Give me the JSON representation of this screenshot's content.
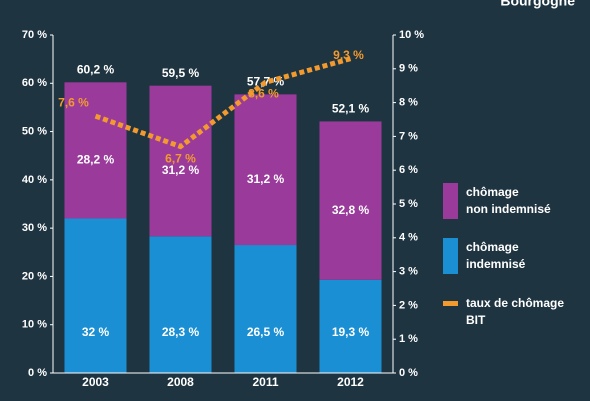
{
  "chart_data": {
    "type": "bar",
    "title": "Bourgogne",
    "categories": [
      "2003",
      "2008",
      "2011",
      "2012"
    ],
    "series": [
      {
        "name": "chômage\nindemnisé",
        "color": "#1a8fd3",
        "values": [
          32,
          28.3,
          26.5,
          19.3
        ],
        "value_labels": [
          "32 %",
          "28,3 %",
          "26,5 %",
          "19,3 %"
        ]
      },
      {
        "name": "chômage\nnon indemnisé",
        "color": "#9a3b9b",
        "values": [
          28.2,
          31.2,
          31.2,
          32.8
        ],
        "value_labels": [
          "28,2 %",
          "31,2 %",
          "31,2 %",
          "32,8 %"
        ]
      },
      {
        "name": "taux de chômage\nBIT",
        "color": "#f29a2e",
        "type": "line",
        "axis": "y2",
        "values": [
          7.6,
          6.7,
          8.6,
          9.3
        ],
        "value_labels": [
          "7,6 %",
          "6,7 %",
          "8,6 %",
          "9,3 %"
        ]
      }
    ],
    "total_labels": [
      "60,2 %",
      "59,5 %",
      "57,7 %",
      "52,1 %"
    ],
    "stacked": true,
    "grid": false,
    "ylim": [
      0,
      70
    ],
    "yticks": [
      {
        "value": 0,
        "label": "0 %"
      },
      {
        "value": 10,
        "label": "10 %"
      },
      {
        "value": 20,
        "label": "20 %"
      },
      {
        "value": 30,
        "label": "30 %"
      },
      {
        "value": 40,
        "label": "40 %"
      },
      {
        "value": 50,
        "label": "50 %"
      },
      {
        "value": 60,
        "label": "60 %"
      },
      {
        "value": 70,
        "label": "70 %"
      }
    ],
    "y2lim": [
      0,
      10
    ],
    "y2ticks": [
      {
        "value": 0,
        "label": "0 %"
      },
      {
        "value": 1,
        "label": "1 %"
      },
      {
        "value": 2,
        "label": "2 %"
      },
      {
        "value": 3,
        "label": "3 %"
      },
      {
        "value": 4,
        "label": "4 %"
      },
      {
        "value": 5,
        "label": "5 %"
      },
      {
        "value": 6,
        "label": "6 %"
      },
      {
        "value": 7,
        "label": "7 %"
      },
      {
        "value": 8,
        "label": "8 %"
      },
      {
        "value": 9,
        "label": "9 %"
      },
      {
        "value": 10,
        "label": "10 %"
      }
    ],
    "legend": "right"
  }
}
